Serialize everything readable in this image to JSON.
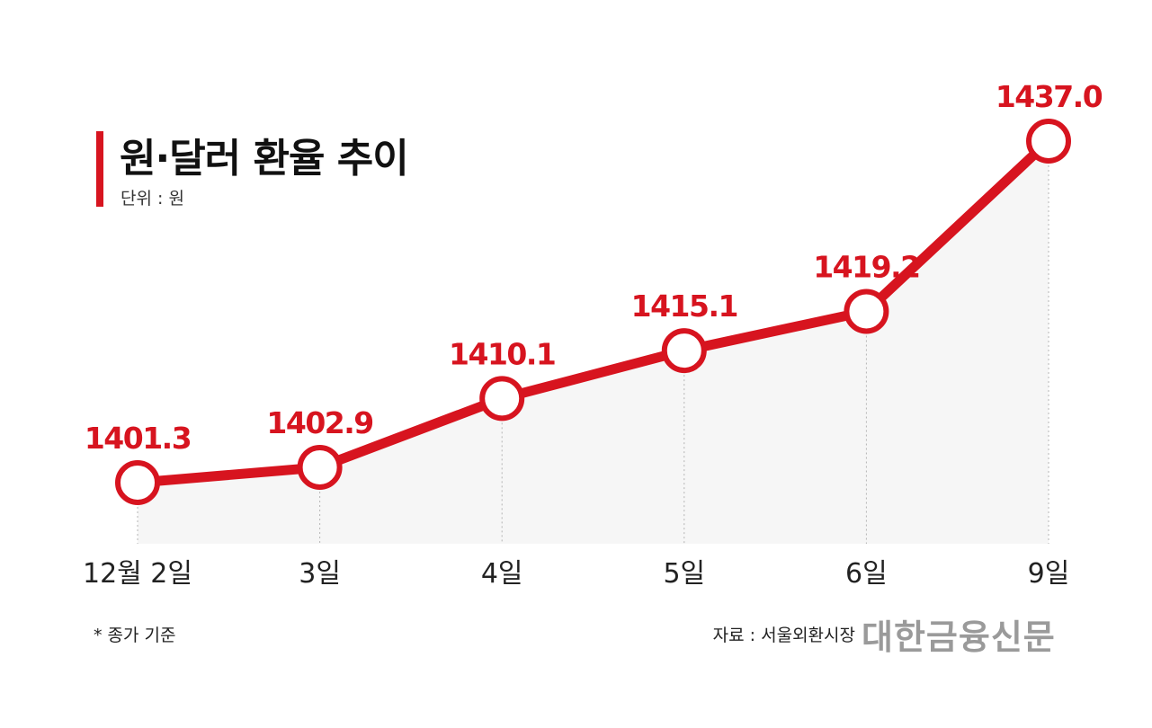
{
  "title": "원·달러 환율 추이",
  "unit_label": "단위 : 원",
  "footnote": "* 종가 기준",
  "source": "자료 : 서울외환시장",
  "brand": "대한금융신문",
  "colors": {
    "line": "#d7141f",
    "label": "#d7141f",
    "area": "#f6f6f6",
    "guide": "#b5b5b5"
  },
  "chart_data": {
    "type": "line",
    "title": "원·달러 환율 추이",
    "ylabel": "단위 : 원",
    "categories": [
      "12월 2일",
      "3일",
      "4일",
      "5일",
      "6일",
      "9일"
    ],
    "values": [
      1401.3,
      1402.9,
      1410.1,
      1415.1,
      1419.2,
      1437.0
    ],
    "data_labels": [
      "1401.3",
      "1402.9",
      "1410.1",
      "1415.1",
      "1419.2",
      "1437.0"
    ],
    "grid": false,
    "legend": "none"
  }
}
